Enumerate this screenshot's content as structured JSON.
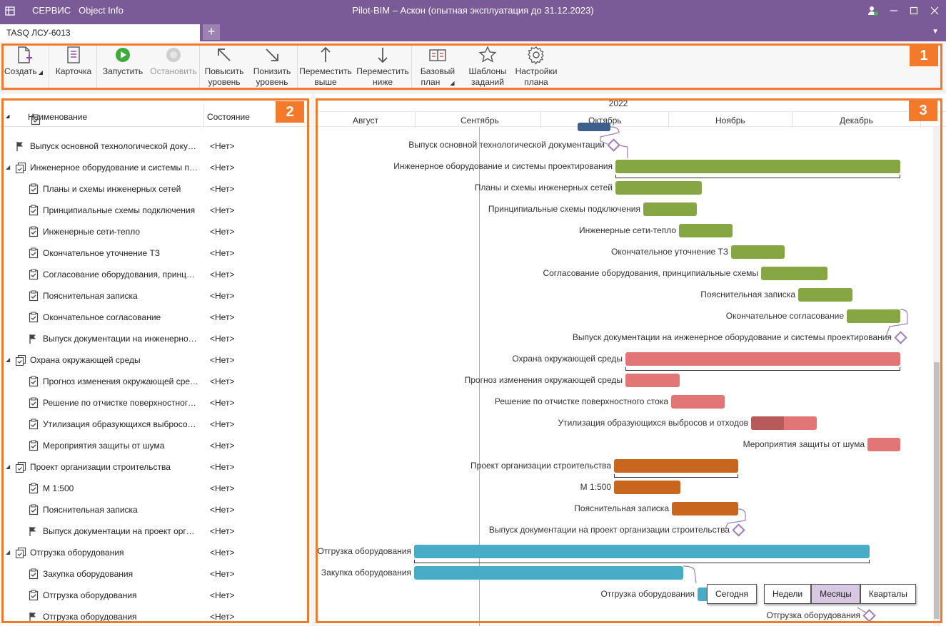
{
  "titlebar": {
    "menu_service": "СЕРВИС",
    "menu_object_info": "Object Info",
    "title": "Pilot-BIM – Аскон (опытная эксплуатация до 31.12.2023)"
  },
  "tabs": {
    "active_tab": "TASQ ЛСУ-6013",
    "add": "+",
    "menu": "▼"
  },
  "ribbon": {
    "create": "Создать",
    "card": "Карточка",
    "run": "Запустить",
    "stop": "Остановить",
    "raise_1": "Повысить",
    "raise_2": "уровень",
    "lower_1": "Понизить",
    "lower_2": "уровень",
    "move_up_1": "Переместить",
    "move_up_2": "выше",
    "move_down_1": "Переместить",
    "move_down_2": "ниже",
    "baseline_1": "Базовый",
    "baseline_2": "план",
    "templates_1": "Шаблоны",
    "templates_2": "заданий",
    "settings_1": "Настройки",
    "settings_2": "плана"
  },
  "badges": {
    "ribbon": "1",
    "tree": "2",
    "gantt": "3"
  },
  "tree": {
    "col_name": "Наименование",
    "col_state": "Состояние",
    "rows": [
      {
        "name": "Выпуск основной технологической документации",
        "state": "<Нет>"
      },
      {
        "name": "Инженерное оборудование и системы проектирования",
        "state": "<Нет>"
      },
      {
        "name": "Планы и схемы инженерных сетей",
        "state": "<Нет>"
      },
      {
        "name": "Принципиальные схемы подключения",
        "state": "<Нет>"
      },
      {
        "name": "Инженерные сети-тепло",
        "state": "<Нет>"
      },
      {
        "name": "Окончательное уточнение ТЗ",
        "state": "<Нет>"
      },
      {
        "name": "Согласование оборудования, принципиальные схемы",
        "state": "<Нет>"
      },
      {
        "name": "Пояснительная записка",
        "state": "<Нет>"
      },
      {
        "name": "Окончательное согласование",
        "state": "<Нет>"
      },
      {
        "name": "Выпуск документации на инженерное оборудование и системы проектирования",
        "state": "<Нет>"
      },
      {
        "name": "Охрана окружающей среды",
        "state": "<Нет>"
      },
      {
        "name": "Прогноз изменения окружающей среды",
        "state": "<Нет>"
      },
      {
        "name": "Решение по отчистке поверхностного стока",
        "state": "<Нет>"
      },
      {
        "name": "Утилизация образующихся выбросов и отходов",
        "state": "<Нет>"
      },
      {
        "name": "Мероприятия защиты от шума",
        "state": "<Нет>"
      },
      {
        "name": "Проект организации строительства",
        "state": "<Нет>"
      },
      {
        "name": "М 1:500",
        "state": "<Нет>"
      },
      {
        "name": "Пояснительная записка",
        "state": "<Нет>"
      },
      {
        "name": "Выпуск документации на проект организации строительства",
        "state": "<Нет>"
      },
      {
        "name": "Отгрузка оборудования",
        "state": "<Нет>"
      },
      {
        "name": "Закупка оборудования",
        "state": "<Нет>"
      },
      {
        "name": "Отгрузка оборудования",
        "state": "<Нет>"
      },
      {
        "name": "Отгрузка оборудования",
        "state": "<Нет>"
      }
    ]
  },
  "gantt": {
    "year": "2022",
    "months": [
      "Август",
      "Сентябрь",
      "Октябрь",
      "Ноябрь",
      "Декабрь"
    ],
    "labels": [
      "Выпуск основной технологической документации",
      "Инженерное оборудование и системы проектирования",
      "Планы и схемы инженерных сетей",
      "Принципиальные схемы подключения",
      "Инженерные сети-тепло",
      "Окончательное уточнение ТЗ",
      "Согласование оборудования, принципиальные схемы",
      "Пояснительная записка",
      "Окончательное согласование",
      "Выпуск документации на инженерное оборудование и системы проектирования",
      "Охрана окружающей среды",
      "Прогноз изменения окружающей среды",
      "Решение по отчистке поверхностного стока",
      "Утилизация образующихся выбросов и отходов",
      "Мероприятия защиты от шума",
      "Проект организации строительства",
      "М 1:500",
      "Пояснительная записка",
      "Выпуск документации на проект организации строительства",
      "Отгрузка оборудования",
      "Закупка оборудования",
      "Отгрузка оборудования",
      "Отгрузка оборудования"
    ],
    "colors": {
      "green": "#86a644",
      "red": "#e27676",
      "red_done": "#b85a5a",
      "orange": "#c7661c",
      "teal": "#48acc6",
      "navy": "#3d5f8e",
      "today": "#d4b24a"
    }
  },
  "zoom": {
    "today": "Сегодня",
    "weeks": "Недели",
    "months": "Месяцы",
    "quarters": "Кварталы"
  }
}
